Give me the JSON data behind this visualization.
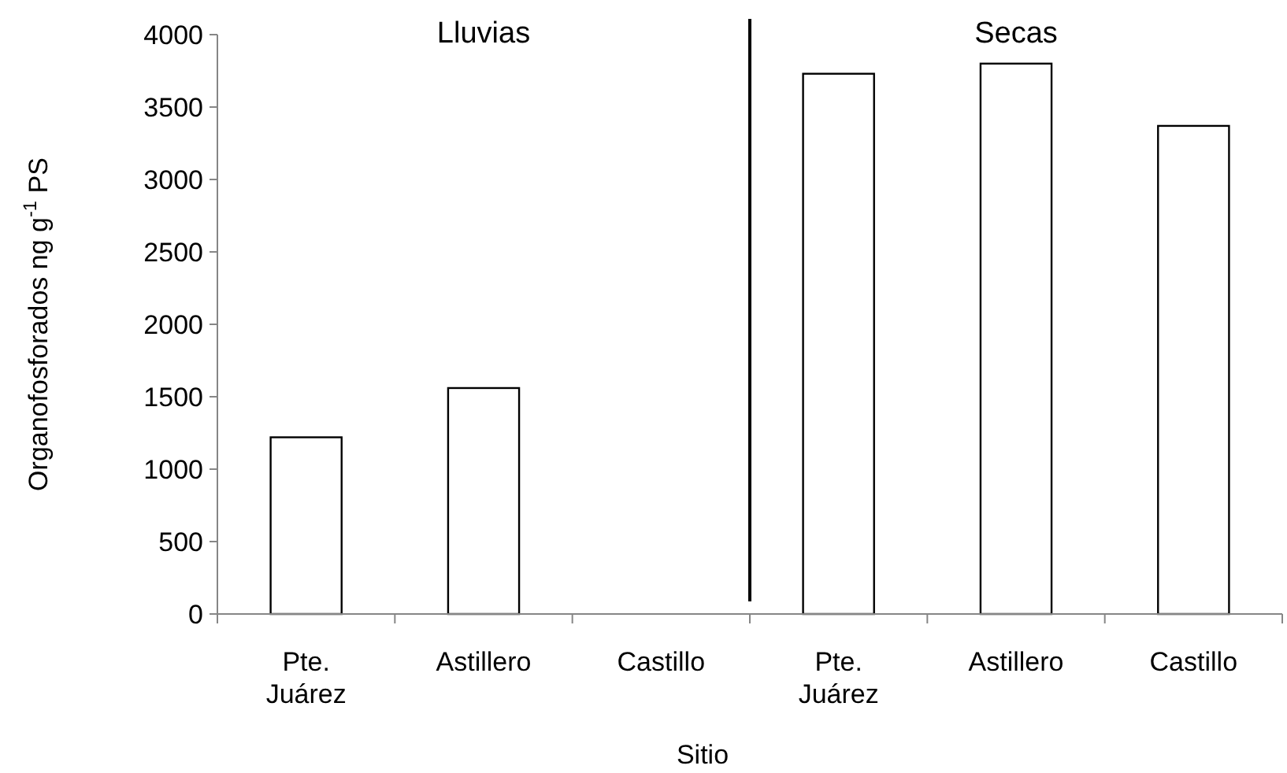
{
  "chart_data": {
    "type": "bar",
    "xlabel": "Sitio",
    "ylabel": "Organofosforados ng g$^{-1}$ PS",
    "categories": [
      "Pte. Juárez",
      "Astillero",
      "Castillo",
      "Pte. Juárez",
      "Astillero",
      "Castillo"
    ],
    "values": [
      1220,
      1560,
      0,
      3730,
      3800,
      3370
    ],
    "color": "#ffffff",
    "ylim": [
      0,
      4000
    ],
    "yticks": [
      0,
      500,
      1000,
      1500,
      2000,
      2500,
      3000,
      3500,
      4000
    ],
    "grid": false,
    "annotations": [
      "Lluvias",
      "Secas"
    ]
  }
}
